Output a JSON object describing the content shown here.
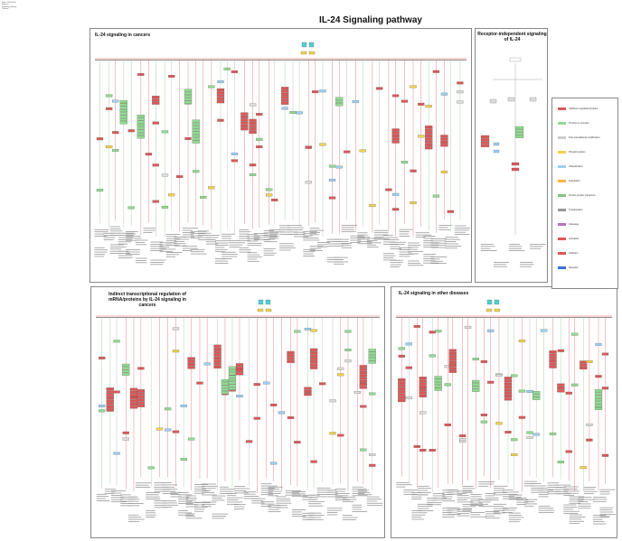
{
  "page": {
    "title": "IL-24 Signaling pathway",
    "corner_note": [
      "Date: 2020-00-00",
      "Authors: ...",
      "Signaling pathway",
      "Content ...",
      "...",
      "..."
    ]
  },
  "panels": {
    "cancers": {
      "title": "IL-24 signaling in cancers"
    },
    "receptor_independent": {
      "title": "Receptor-independent signaling of IL-24"
    },
    "indirect": {
      "title": "Indirect transcriptional regulation of mRNA/proteins by IL-24 signaling in cancers"
    },
    "other_diseases": {
      "title": "IL-24 signaling in other diseases"
    }
  },
  "legend": {
    "items": [
      {
        "label": "Up/Down-regulated proteins",
        "color": "#e05555"
      },
      {
        "label": "Proteins in complex",
        "color": "#8fdc8f"
      },
      {
        "label": "Post-translational modification",
        "color": "#cccccc"
      },
      {
        "label": "Phosphorylation",
        "color": "#f2d24a"
      },
      {
        "label": "Ubiquitination",
        "color": "#9ad0f5"
      },
      {
        "label": "Acetylation",
        "color": "#ffb347"
      },
      {
        "label": "Protein-protein interaction",
        "color": "#7ec87e"
      },
      {
        "label": "Translocation",
        "color": "#999999"
      },
      {
        "label": "Cleavage",
        "color": "#c070c0"
      },
      {
        "label": "Activation",
        "color": "#e05555"
      },
      {
        "label": "Inhibition",
        "color": "#e05555"
      },
      {
        "label": "Receptor",
        "color": "#3a6fd8"
      }
    ]
  }
}
